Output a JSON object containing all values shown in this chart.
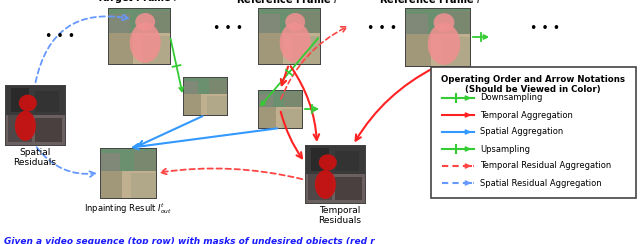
{
  "caption": "Given a video sequence (top row) with masks of undesired objects (red r",
  "caption_color": "#1a1aff",
  "legend_title_line1": "Operating Order and Arrow Notations",
  "legend_title_line2": "(Should be Viewed in Color)",
  "legend_items": [
    {
      "label": "Downsampling",
      "color": "#33cc33",
      "style": "solid",
      "has_tick": true
    },
    {
      "label": "Temporal Aggregation",
      "color": "#ff2222",
      "style": "solid",
      "has_tick": false
    },
    {
      "label": "Spatial Aggregation",
      "color": "#3399ff",
      "style": "solid",
      "has_tick": false
    },
    {
      "label": "Upsampling",
      "color": "#33cc33",
      "style": "solid",
      "has_tick": true
    },
    {
      "label": "Temporal Residual Aggregation",
      "color": "#ff4444",
      "style": "dotted",
      "has_tick": false
    },
    {
      "label": "Spatial Residual Aggregation",
      "color": "#6699ff",
      "style": "dotted",
      "has_tick": false
    }
  ],
  "dots_color": "#111111",
  "frame_border": "#444444",
  "green": "#33cc33",
  "red": "#ff2222",
  "blue": "#3399ff",
  "red_dotted": "#ff4444",
  "blue_dotted": "#6699ff"
}
